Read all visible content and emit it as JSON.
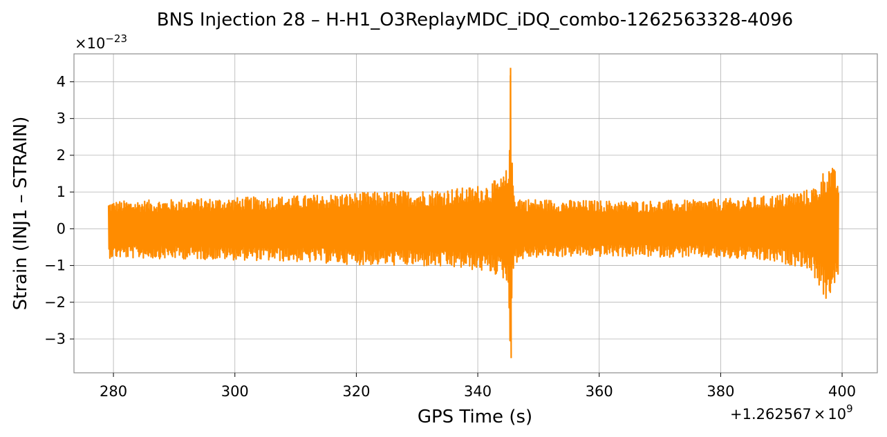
{
  "chart_data": {
    "type": "line",
    "title": "BNS Injection 28 – H-H1_O3ReplayMDC_iDQ_combo-1262563328-4096",
    "xlabel": "GPS Time (s)",
    "ylabel": "Strain (INJ1 – STRAIN)",
    "y_multiplier_base": "×10",
    "y_multiplier_exp": "−23",
    "x_offset_main": "+1.262567",
    "x_offset_times": "×",
    "x_offset_base": "10",
    "x_offset_exp": "9",
    "xlim": [
      273.5,
      405.8
    ],
    "ylim": [
      -3.92,
      4.76
    ],
    "x_ticks": [
      280,
      300,
      320,
      340,
      360,
      380,
      400
    ],
    "x_tick_labels": [
      "280",
      "300",
      "320",
      "340",
      "360",
      "380",
      "400"
    ],
    "y_ticks": [
      -3,
      -2,
      -1,
      0,
      1,
      2,
      3,
      4
    ],
    "y_tick_labels": [
      "−3",
      "−2",
      "−1",
      "0",
      "1",
      "2",
      "3",
      "4"
    ],
    "grid": true,
    "series": [
      {
        "color": "#ff8c00",
        "x_range": [
          279.2,
          399.4
        ],
        "envelope": {
          "x": [
            279.2,
            290,
            300,
            310,
            320,
            330,
            338,
            342,
            344,
            345.0,
            345.4,
            345.6,
            346.0,
            348,
            355,
            365,
            375,
            385,
            390,
            394,
            396,
            397.2,
            398.0,
            399.4
          ],
          "y_upper": [
            0.75,
            0.8,
            0.85,
            0.9,
            0.98,
            1.05,
            1.12,
            1.25,
            1.4,
            1.7,
            4.38,
            2.0,
            0.95,
            0.82,
            0.78,
            0.76,
            0.78,
            0.85,
            0.95,
            1.05,
            1.2,
            1.7,
            1.78,
            1.45
          ],
          "y_lower": [
            -0.8,
            -0.82,
            -0.85,
            -0.9,
            -0.98,
            -1.02,
            -1.1,
            -1.2,
            -1.32,
            -1.6,
            -3.52,
            -2.0,
            -0.95,
            -0.8,
            -0.76,
            -0.76,
            -0.78,
            -0.85,
            -0.95,
            -1.05,
            -1.45,
            -2.05,
            -1.8,
            -1.4
          ]
        },
        "peaks": {
          "max": {
            "x": 345.4,
            "y": 4.38
          },
          "min": {
            "x": 345.5,
            "y": -3.52
          }
        }
      }
    ]
  }
}
